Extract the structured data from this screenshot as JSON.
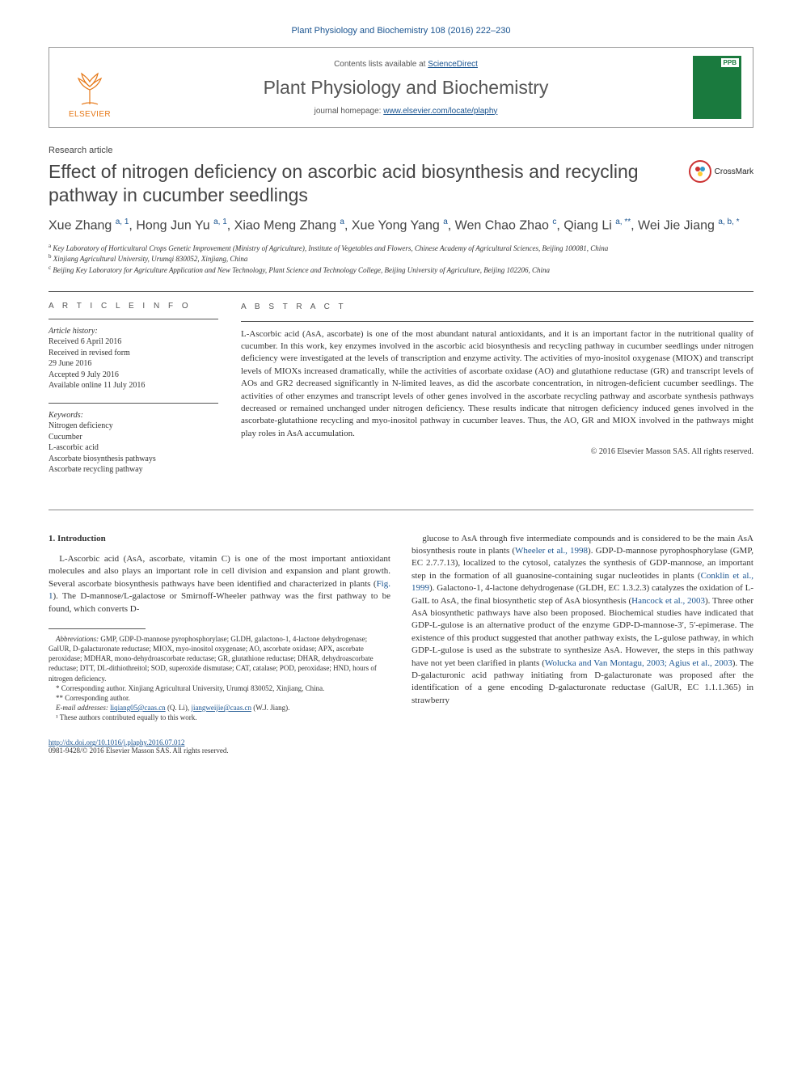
{
  "citation": "Plant Physiology and Biochemistry 108 (2016) 222–230",
  "header": {
    "elsevier": "ELSEVIER",
    "contents_prefix": "Contents lists available at ",
    "contents_link": "ScienceDirect",
    "journal_name": "Plant Physiology and Biochemistry",
    "homepage_prefix": "journal homepage: ",
    "homepage_link": "www.elsevier.com/locate/plaphy",
    "cover_tag": "PPB"
  },
  "article_type": "Research article",
  "title": "Effect of nitrogen deficiency on ascorbic acid biosynthesis and recycling pathway in cucumber seedlings",
  "crossmark": "CrossMark",
  "authors_html": "Xue Zhang <span class='sup'>a, 1</span>, Hong Jun Yu <span class='sup'>a, 1</span>, Xiao Meng Zhang <span class='sup'>a</span>, Xue Yong Yang <span class='sup'>a</span>, Wen Chao Zhao <span class='sup'>c</span>, Qiang Li <span class='sup'>a, **</span>, Wei Jie Jiang <span class='sup'>a, b, *</span>",
  "affiliations": [
    {
      "sup": "a",
      "text": "Key Laboratory of Horticultural Crops Genetic Improvement (Ministry of Agriculture), Institute of Vegetables and Flowers, Chinese Academy of Agricultural Sciences, Beijing 100081, China"
    },
    {
      "sup": "b",
      "text": "Xinjiang Agricultural University, Urumqi 830052, Xinjiang, China"
    },
    {
      "sup": "c",
      "text": "Beijing Key Laboratory for Agriculture Application and New Technology, Plant Science and Technology College, Beijing University of Agriculture, Beijing 102206, China"
    }
  ],
  "info": {
    "heading": "A R T I C L E   I N F O",
    "history_label": "Article history:",
    "history": [
      "Received 6 April 2016",
      "Received in revised form",
      "29 June 2016",
      "Accepted 9 July 2016",
      "Available online 11 July 2016"
    ],
    "keywords_label": "Keywords:",
    "keywords": [
      "Nitrogen deficiency",
      "Cucumber",
      "L-ascorbic acid",
      "Ascorbate biosynthesis pathways",
      "Ascorbate recycling pathway"
    ]
  },
  "abstract": {
    "heading": "A B S T R A C T",
    "text": "L-Ascorbic acid (AsA, ascorbate) is one of the most abundant natural antioxidants, and it is an important factor in the nutritional quality of cucumber. In this work, key enzymes involved in the ascorbic acid biosynthesis and recycling pathway in cucumber seedlings under nitrogen deficiency were investigated at the levels of transcription and enzyme activity. The activities of myo-inositol oxygenase (MIOX) and transcript levels of MIOXs increased dramatically, while the activities of ascorbate oxidase (AO) and glutathione reductase (GR) and transcript levels of AOs and GR2 decreased significantly in N-limited leaves, as did the ascorbate concentration, in nitrogen-deficient cucumber seedlings. The activities of other enzymes and transcript levels of other genes involved in the ascorbate recycling pathway and ascorbate synthesis pathways decreased or remained unchanged under nitrogen deficiency. These results indicate that nitrogen deficiency induced genes involved in the ascorbate-glutathione recycling and myo-inositol pathway in cucumber leaves. Thus, the AO, GR and MIOX involved in the pathways might play roles in AsA accumulation.",
    "copyright": "© 2016 Elsevier Masson SAS. All rights reserved."
  },
  "body": {
    "section_no": "1.",
    "section_title": "Introduction",
    "left_para": "L-Ascorbic acid (AsA, ascorbate, vitamin C) is one of the most important antioxidant molecules and also plays an important role in cell division and expansion and plant growth. Several ascorbate biosynthesis pathways have been identified and characterized in plants (Fig. 1). The D-mannose/L-galactose or Smirnoff-Wheeler pathway was the first pathway to be found, which converts D-",
    "right_para": "glucose to AsA through five intermediate compounds and is considered to be the main AsA biosynthesis route in plants (Wheeler et al., 1998). GDP-D-mannose pyrophosphorylase (GMP, EC 2.7.7.13), localized to the cytosol, catalyzes the synthesis of GDP-mannose, an important step in the formation of all guanosine-containing sugar nucleotides in plants (Conklin et al., 1999). Galactono-1, 4-lactone dehydrogenase (GLDH, EC 1.3.2.3) catalyzes the oxidation of L-GalL to AsA, the final biosynthetic step of AsA biosynthesis (Hancock et al., 2003). Three other AsA biosynthetic pathways have also been proposed. Biochemical studies have indicated that GDP-L-gulose is an alternative product of the enzyme GDP-D-mannose-3′, 5′-epimerase. The existence of this product suggested that another pathway exists, the L-gulose pathway, in which GDP-L-gulose is used as the substrate to synthesize AsA. However, the steps in this pathway have not yet been clarified in plants (Wolucka and Van Montagu, 2003; Agius et al., 2003). The D-galacturonic acid pathway initiating from D-galacturonate was proposed after the identification of a gene encoding D-galacturonate reductase (GalUR, EC 1.1.1.365) in strawberry"
  },
  "footnotes": {
    "abbrev_label": "Abbreviations:",
    "abbrev": " GMP, GDP-D-mannose pyrophosphorylase; GLDH, galactono-1, 4-lactone dehydrogenase; GalUR, D-galacturonate reductase; MIOX, myo-inositol oxygenase; AO, ascorbate oxidase; APX, ascorbate peroxidase; MDHAR, mono-dehydroascorbate reductase; GR, glutathione reductase; DHAR, dehydroascorbate reductase; DTT, DL-dithiothreitol; SOD, superoxide dismutase; CAT, catalase; POD, peroxidase; HND, hours of nitrogen deficiency.",
    "corr1": "* Corresponding author. Xinjiang Agricultural University, Urumqi 830052, Xinjiang, China.",
    "corr2": "** Corresponding author.",
    "emails_label": "E-mail addresses:",
    "email1": "liqiang05@caas.cn",
    "email1_who": " (Q. Li), ",
    "email2": "jiangweijie@caas.cn",
    "email2_who": " (W.J. Jiang).",
    "equal": "¹ These authors contributed equally to this work."
  },
  "footer": {
    "doi": "http://dx.doi.org/10.1016/j.plaphy.2016.07.012",
    "issn": "0981-9428/© 2016 Elsevier Masson SAS. All rights reserved."
  },
  "colors": {
    "link": "#1a5490",
    "elsevier": "#e67817",
    "cover": "#1a7a3e",
    "crossmark": "#c33"
  }
}
